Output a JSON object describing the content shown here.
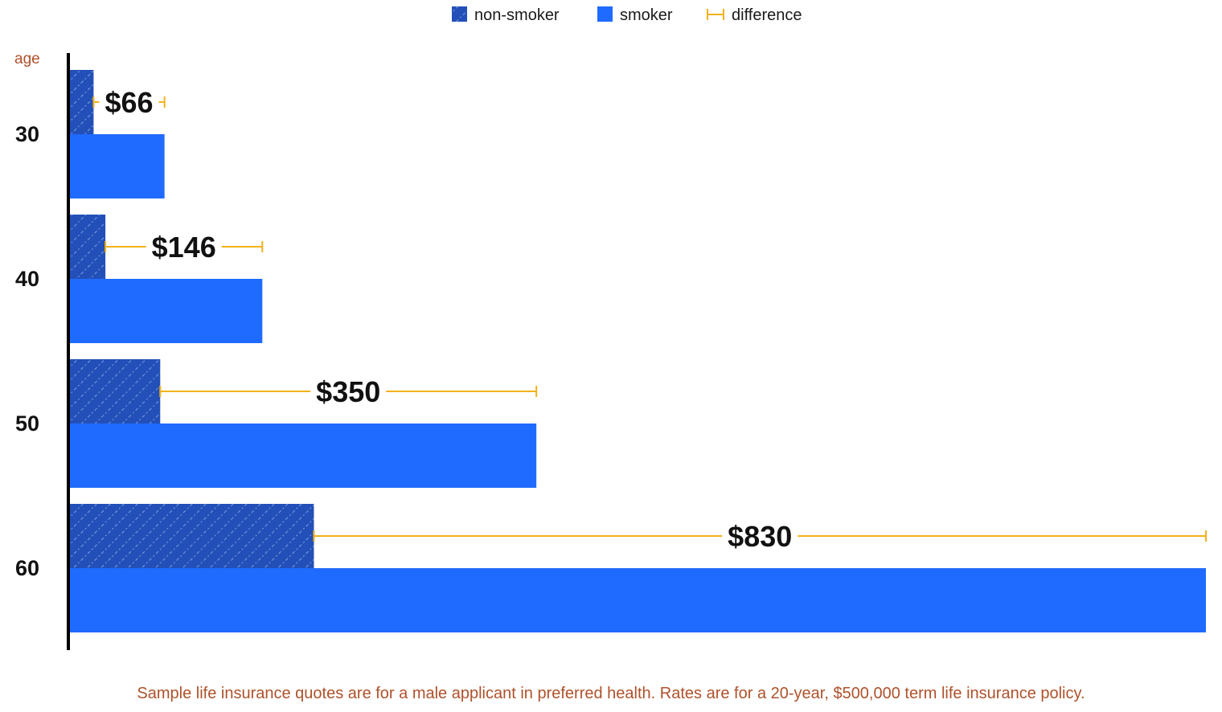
{
  "legend": {
    "non_smoker_label": "non-smoker",
    "smoker_label": "smoker",
    "difference_label": "difference"
  },
  "footnote": "Sample life insurance quotes are for a male applicant in preferred health. Rates are for a 20-year, $500,000 term life insurance policy.",
  "colors": {
    "non_smoker": "#2350b8",
    "smoker": "#1f6bff",
    "difference": "#f2b21b",
    "axis": "#000000",
    "accent_text": "#b0512a"
  },
  "chart_data": {
    "type": "bar",
    "orientation": "horizontal",
    "ylabel": "age",
    "categories": [
      "30",
      "40",
      "50",
      "60"
    ],
    "series": [
      {
        "name": "non-smoker",
        "values": [
          22,
          33,
          84,
          227
        ]
      },
      {
        "name": "smoker",
        "values": [
          88,
          179,
          434,
          1057
        ]
      }
    ],
    "differences": [
      66,
      146,
      350,
      830
    ],
    "difference_labels": [
      "$66",
      "$146",
      "$350",
      "$830"
    ],
    "xlim": [
      0,
      1057
    ],
    "grid": false,
    "legend_position": "top-center"
  }
}
